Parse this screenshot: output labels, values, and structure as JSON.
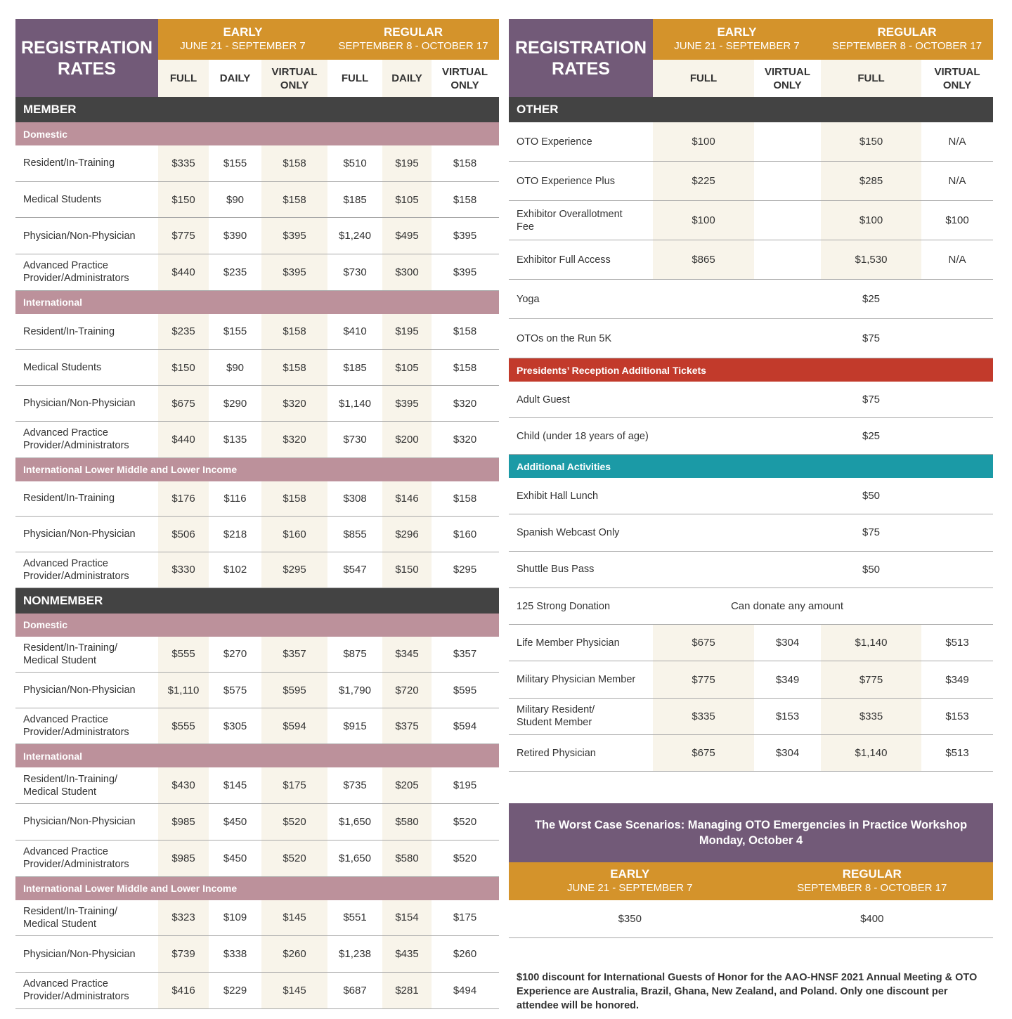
{
  "colors": {
    "purple": "#725a78",
    "gold": "#d4932b",
    "dark": "#434343",
    "rose": "#bc919b",
    "red": "#c23a2b",
    "teal": "#1b9aa6",
    "shade": "#f8f4ea"
  },
  "header": {
    "title_line1": "REGISTRATION",
    "title_line2": "RATES",
    "early": {
      "name": "EARLY",
      "dates": "JUNE 21 - SEPTEMBER 7"
    },
    "regular": {
      "name": "REGULAR",
      "dates": "SEPTEMBER 8 - OCTOBER 17"
    }
  },
  "left": {
    "columns": [
      {
        "l1": "FULL",
        "l2": ""
      },
      {
        "l1": "DAILY",
        "l2": ""
      },
      {
        "l1": "VIRTUAL",
        "l2": "ONLY"
      },
      {
        "l1": "FULL",
        "l2": ""
      },
      {
        "l1": "DAILY",
        "l2": ""
      },
      {
        "l1": "VIRTUAL",
        "l2": "ONLY"
      }
    ],
    "member": {
      "title": "MEMBER",
      "domestic": {
        "title": "Domestic",
        "rows": [
          {
            "l1": "Resident/In-Training",
            "l2": "",
            "v": [
              "$335",
              "$155",
              "$158",
              "$510",
              "$195",
              "$158"
            ]
          },
          {
            "l1": "Medical Students",
            "l2": "",
            "v": [
              "$150",
              "$90",
              "$158",
              "$185",
              "$105",
              "$158"
            ]
          },
          {
            "l1": "Physician/Non-Physician",
            "l2": "",
            "v": [
              "$775",
              "$390",
              "$395",
              "$1,240",
              "$495",
              "$395"
            ]
          },
          {
            "l1": "Advanced Practice",
            "l2": "Provider/Administrators",
            "v": [
              "$440",
              "$235",
              "$395",
              "$730",
              "$300",
              "$395"
            ]
          }
        ]
      },
      "international": {
        "title": "International",
        "rows": [
          {
            "l1": "Resident/In-Training",
            "l2": "",
            "v": [
              "$235",
              "$155",
              "$158",
              "$410",
              "$195",
              "$158"
            ]
          },
          {
            "l1": "Medical Students",
            "l2": "",
            "v": [
              "$150",
              "$90",
              "$158",
              "$185",
              "$105",
              "$158"
            ]
          },
          {
            "l1": "Physician/Non-Physician",
            "l2": "",
            "v": [
              "$675",
              "$290",
              "$320",
              "$1,140",
              "$395",
              "$320"
            ]
          },
          {
            "l1": "Advanced Practice",
            "l2": "Provider/Administrators",
            "v": [
              "$440",
              "$135",
              "$320",
              "$730",
              "$200",
              "$320"
            ]
          }
        ]
      },
      "lmi": {
        "title": "International Lower Middle and Lower Income",
        "rows": [
          {
            "l1": "Resident/In-Training",
            "l2": "",
            "v": [
              "$176",
              "$116",
              "$158",
              "$308",
              "$146",
              "$158"
            ]
          },
          {
            "l1": "Physician/Non-Physician",
            "l2": "",
            "v": [
              "$506",
              "$218",
              "$160",
              "$855",
              "$296",
              "$160"
            ]
          },
          {
            "l1": "Advanced Practice",
            "l2": "Provider/Administrators",
            "v": [
              "$330",
              "$102",
              "$295",
              "$547",
              "$150",
              "$295"
            ]
          }
        ]
      }
    },
    "nonmember": {
      "title": "NONMEMBER",
      "domestic": {
        "title": "Domestic",
        "rows": [
          {
            "l1": "Resident/In-Training/",
            "l2": "Medical Student",
            "v": [
              "$555",
              "$270",
              "$357",
              "$875",
              "$345",
              "$357"
            ]
          },
          {
            "l1": "Physician/Non-Physician",
            "l2": "",
            "v": [
              "$1,110",
              "$575",
              "$595",
              "$1,790",
              "$720",
              "$595"
            ]
          },
          {
            "l1": "Advanced Practice",
            "l2": "Provider/Administrators",
            "v": [
              "$555",
              "$305",
              "$594",
              "$915",
              "$375",
              "$594"
            ]
          }
        ]
      },
      "international": {
        "title": "International",
        "rows": [
          {
            "l1": "Resident/In-Training/",
            "l2": "Medical Student",
            "v": [
              "$430",
              "$145",
              "$175",
              "$735",
              "$205",
              "$195"
            ]
          },
          {
            "l1": "Physician/Non-Physician",
            "l2": "",
            "v": [
              "$985",
              "$450",
              "$520",
              "$1,650",
              "$580",
              "$520"
            ]
          },
          {
            "l1": "Advanced Practice",
            "l2": "Provider/Administrators",
            "v": [
              "$985",
              "$450",
              "$520",
              "$1,650",
              "$580",
              "$520"
            ]
          }
        ]
      },
      "lmi": {
        "title": "International Lower Middle and Lower Income",
        "rows": [
          {
            "l1": "Resident/In-Training/",
            "l2": "Medical Student",
            "v": [
              "$323",
              "$109",
              "$145",
              "$551",
              "$154",
              "$175"
            ]
          },
          {
            "l1": "Physician/Non-Physician",
            "l2": "",
            "v": [
              "$739",
              "$338",
              "$260",
              "$1,238",
              "$435",
              "$260"
            ]
          },
          {
            "l1": "Advanced Practice",
            "l2": "Provider/Administrators",
            "v": [
              "$416",
              "$229",
              "$145",
              "$687",
              "$281",
              "$494"
            ]
          }
        ]
      }
    }
  },
  "right": {
    "columns": [
      {
        "l1": "FULL",
        "l2": ""
      },
      {
        "l1": "VIRTUAL",
        "l2": "ONLY"
      },
      {
        "l1": "FULL",
        "l2": ""
      },
      {
        "l1": "VIRTUAL",
        "l2": "ONLY"
      }
    ],
    "other": {
      "title": "OTHER",
      "rows": [
        {
          "l1": "OTO Experience",
          "l2": "",
          "v": [
            "$100",
            "",
            "$150",
            "N/A"
          ]
        },
        {
          "l1": "OTO Experience Plus",
          "l2": "",
          "v": [
            "$225",
            "",
            "$285",
            "N/A"
          ]
        },
        {
          "l1": "Exhibitor Overallotment",
          "l2": "Fee",
          "v": [
            "$100",
            "",
            "$100",
            "$100"
          ]
        },
        {
          "l1": "Exhibitor Full Access",
          "l2": "",
          "v": [
            "$865",
            "",
            "$1,530",
            "N/A"
          ]
        },
        {
          "l1": "Yoga",
          "l2": "",
          "span": "$25"
        },
        {
          "l1": "OTOs on the Run 5K",
          "l2": "",
          "span": "$75"
        }
      ]
    },
    "reception": {
      "title": "Presidents’ Reception Additional Tickets",
      "rows": [
        {
          "l1": "Adult Guest",
          "l2": "",
          "span": "$75"
        },
        {
          "l1": "Child (under 18 years of age)",
          "l2": "",
          "span": "$25"
        }
      ]
    },
    "activities": {
      "title": "Additional Activities",
      "rows": [
        {
          "l1": "Exhibit Hall Lunch",
          "l2": "",
          "span": "$50"
        },
        {
          "l1": "Spanish Webcast Only",
          "l2": "",
          "span": "$75"
        },
        {
          "l1": "Shuttle Bus Pass",
          "l2": "",
          "span": "$50"
        },
        {
          "l1": "125 Strong Donation",
          "l2": "",
          "wide": "Can donate any amount"
        },
        {
          "l1": "Life Member Physician",
          "l2": "",
          "v": [
            "$675",
            "$304",
            "$1,140",
            "$513"
          ]
        },
        {
          "l1": "Military Physician Member",
          "l2": "",
          "v": [
            "$775",
            "$349",
            "$775",
            "$349"
          ]
        },
        {
          "l1": "Military Resident/",
          "l2": "Student Member",
          "v": [
            "$335",
            "$153",
            "$335",
            "$153"
          ]
        },
        {
          "l1": "Retired Physician",
          "l2": "",
          "v": [
            "$675",
            "$304",
            "$1,140",
            "$513"
          ]
        }
      ]
    }
  },
  "workshop": {
    "title": "The Worst Case Scenarios: Managing OTO Emergencies in Practice Workshop",
    "date": "Monday, October 4",
    "early_price": "$350",
    "regular_price": "$400"
  },
  "note": "$100 discount for International Guests of Honor for the AAO-HNSF 2021 Annual Meeting & OTO Experience are Australia, Brazil, Ghana, New Zealand, and Poland. Only one discount per attendee will be honored."
}
